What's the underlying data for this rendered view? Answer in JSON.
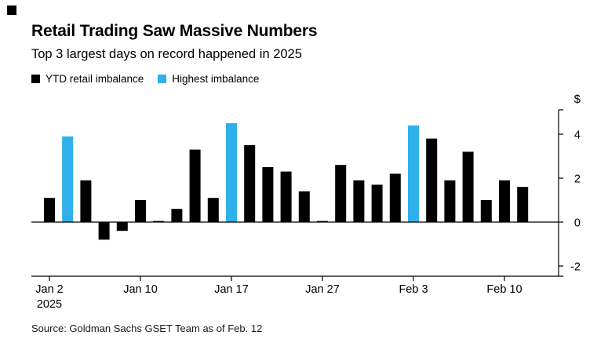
{
  "header": {
    "title": "Retail Trading Saw Massive Numbers",
    "subtitle": "Top 3 largest days on record happened in 2025"
  },
  "legend": {
    "items": [
      {
        "label": "YTD retail imbalance",
        "color": "#000000"
      },
      {
        "label": "Highest imbalance",
        "color": "#30B0EA"
      }
    ]
  },
  "chart_data": {
    "type": "bar",
    "title": "Retail Trading Saw Massive Numbers",
    "subtitle": "Top 3 largest days on record happened in 2025",
    "ylabel": "$",
    "unit_label": "$",
    "ylim": [
      -2.5,
      5
    ],
    "y_ticks": [
      4,
      2,
      0,
      -2
    ],
    "grid": false,
    "legend_position": "top-left",
    "bar_color": "#000000",
    "highlight_color": "#30B0EA",
    "values": [
      1.1,
      3.9,
      1.9,
      -0.8,
      -0.4,
      1.0,
      0.05,
      0.6,
      3.3,
      1.1,
      4.5,
      3.5,
      2.5,
      2.3,
      1.4,
      0.05,
      2.6,
      1.9,
      1.7,
      2.2,
      4.4,
      3.8,
      1.9,
      3.2,
      1.0,
      1.9,
      1.6
    ],
    "highlight_indices": [
      1,
      10,
      20
    ],
    "x_tick_labels": [
      {
        "index": 0,
        "line1": "Jan 2",
        "line2": "2025"
      },
      {
        "index": 5,
        "line1": "Jan 10",
        "line2": ""
      },
      {
        "index": 10,
        "line1": "Jan 17",
        "line2": ""
      },
      {
        "index": 15,
        "line1": "Jan 27",
        "line2": ""
      },
      {
        "index": 20,
        "line1": "Feb 3",
        "line2": ""
      },
      {
        "index": 25,
        "line1": "Feb 10",
        "line2": ""
      }
    ]
  },
  "source": "Source: Goldman Sachs GSET Team as of Feb. 12"
}
